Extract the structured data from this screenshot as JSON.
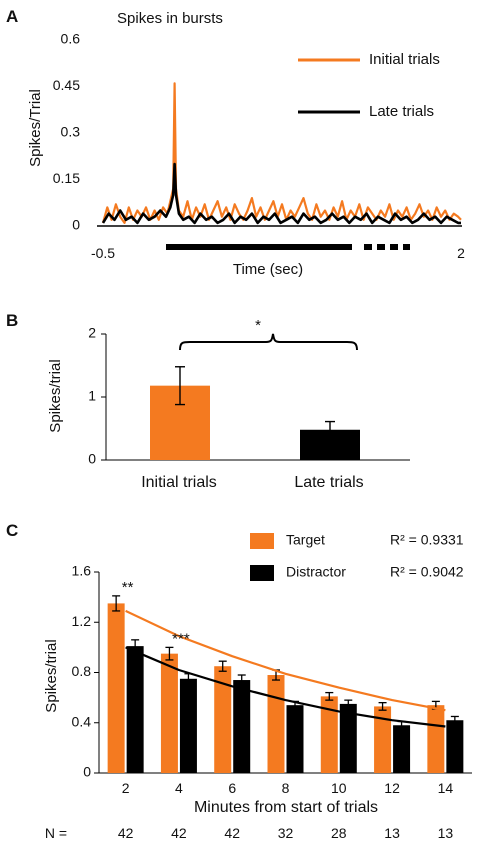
{
  "panels": {
    "A": {
      "letter": "A",
      "title": "Spikes in bursts",
      "ylabel": "Spikes/Trial",
      "xlabel": "Time (sec)",
      "yticks": [
        "0",
        "0.15",
        "0.3",
        "0.45",
        "0.6"
      ],
      "ytick_values": [
        0,
        0.15,
        0.3,
        0.45,
        0.6
      ],
      "xtick_start": "-0.5",
      "xtick_end": "2",
      "legend": [
        {
          "label": "Initial trials",
          "color": "#f47a20"
        },
        {
          "label": "Late trials",
          "color": "#000000"
        }
      ]
    },
    "B": {
      "letter": "B",
      "ylabel": "Spikes/trial",
      "yticks": [
        "0",
        "1",
        "2"
      ],
      "significance": "*"
    },
    "C": {
      "letter": "C",
      "ylabel": "Spikes/trial",
      "xlabel": "Minutes from start of trials",
      "yticks": [
        "0",
        "0.4",
        "0.8",
        "1.2",
        "1.6"
      ],
      "legend": [
        {
          "label": "Target",
          "r2": "R² = 0.9331",
          "color": "#f47a20"
        },
        {
          "label": "Distractor",
          "r2": "R² = 0.9042",
          "color": "#000000"
        }
      ],
      "stars": [
        {
          "category": "2",
          "text": "**"
        },
        {
          "category": "4",
          "text": "***"
        }
      ],
      "n_prefix": "N =",
      "n_values": [
        "42",
        "42",
        "42",
        "32",
        "28",
        "13",
        "13"
      ]
    }
  },
  "chart_data": [
    {
      "type": "line",
      "title": "Spikes in bursts",
      "xlabel": "Time (sec)",
      "ylabel": "Spikes/Trial",
      "xlim": [
        -0.5,
        2
      ],
      "ylim": [
        0,
        0.6
      ],
      "grid": false,
      "legend_position": "top-right",
      "series": [
        {
          "name": "Initial trials",
          "color": "#f47a20",
          "x": [
            -0.5,
            -0.47,
            -0.44,
            -0.41,
            -0.38,
            -0.35,
            -0.32,
            -0.29,
            -0.26,
            -0.23,
            -0.2,
            -0.17,
            -0.14,
            -0.11,
            -0.08,
            -0.05,
            -0.03,
            -0.01,
            0,
            0.01,
            0.03,
            0.06,
            0.09,
            0.12,
            0.15,
            0.18,
            0.21,
            0.24,
            0.27,
            0.3,
            0.33,
            0.36,
            0.39,
            0.42,
            0.45,
            0.48,
            0.51,
            0.54,
            0.57,
            0.6,
            0.63,
            0.66,
            0.69,
            0.72,
            0.75,
            0.78,
            0.81,
            0.84,
            0.87,
            0.9,
            0.93,
            0.96,
            0.99,
            1.02,
            1.05,
            1.08,
            1.11,
            1.14,
            1.17,
            1.2,
            1.23,
            1.26,
            1.29,
            1.32,
            1.35,
            1.38,
            1.41,
            1.44,
            1.47,
            1.5,
            1.53,
            1.56,
            1.59,
            1.62,
            1.65,
            1.68,
            1.71,
            1.74,
            1.77,
            1.8,
            1.83,
            1.86,
            1.89,
            1.92,
            1.95,
            1.98,
            2
          ],
          "y": [
            0.01,
            0.06,
            0.02,
            0.07,
            0.03,
            0.01,
            0.06,
            0.02,
            0.05,
            0.03,
            0.06,
            0.02,
            0.05,
            0.02,
            0.06,
            0.04,
            0.08,
            0.12,
            0.46,
            0.12,
            0.05,
            0.03,
            0.08,
            0.02,
            0.06,
            0.03,
            0.07,
            0.02,
            0.05,
            0.08,
            0.03,
            0.06,
            0.02,
            0.07,
            0.04,
            0.02,
            0.05,
            0.09,
            0.03,
            0.06,
            0.02,
            0.05,
            0.08,
            0.03,
            0.07,
            0.02,
            0.05,
            0.03,
            0.06,
            0.09,
            0.04,
            0.02,
            0.07,
            0.03,
            0.05,
            0.02,
            0.06,
            0.03,
            0.08,
            0.02,
            0.05,
            0.03,
            0.07,
            0.02,
            0.06,
            0.04,
            0.02,
            0.05,
            0.03,
            0.07,
            0.02,
            0.05,
            0.03,
            0.06,
            0.02,
            0.04,
            0.07,
            0.03,
            0.05,
            0.02,
            0.06,
            0.03,
            0.05,
            0.02,
            0.04,
            0.03,
            0.02
          ]
        },
        {
          "name": "Late trials",
          "color": "#000000",
          "x": [
            -0.5,
            -0.46,
            -0.42,
            -0.38,
            -0.34,
            -0.3,
            -0.26,
            -0.22,
            -0.18,
            -0.14,
            -0.1,
            -0.06,
            -0.03,
            -0.01,
            0,
            0.01,
            0.03,
            0.06,
            0.1,
            0.14,
            0.18,
            0.22,
            0.26,
            0.3,
            0.34,
            0.38,
            0.42,
            0.46,
            0.5,
            0.54,
            0.58,
            0.62,
            0.66,
            0.7,
            0.74,
            0.78,
            0.82,
            0.86,
            0.9,
            0.94,
            0.98,
            1.02,
            1.06,
            1.1,
            1.14,
            1.18,
            1.22,
            1.26,
            1.3,
            1.34,
            1.38,
            1.42,
            1.46,
            1.5,
            1.54,
            1.58,
            1.62,
            1.66,
            1.7,
            1.74,
            1.78,
            1.82,
            1.86,
            1.9,
            1.94,
            1.98,
            2
          ],
          "y": [
            0.01,
            0.04,
            0.02,
            0.05,
            0.02,
            0.03,
            0.01,
            0.04,
            0.02,
            0.03,
            0.05,
            0.03,
            0.06,
            0.1,
            0.2,
            0.1,
            0.04,
            0.02,
            0.03,
            0.01,
            0.04,
            0.02,
            0.03,
            0.01,
            0.02,
            0.04,
            0.01,
            0.03,
            0.02,
            0.04,
            0.01,
            0.03,
            0.02,
            0.04,
            0.01,
            0.02,
            0.03,
            0.01,
            0.04,
            0.02,
            0.03,
            0.01,
            0.02,
            0.04,
            0.02,
            0.03,
            0.01,
            0.03,
            0.02,
            0.04,
            0.01,
            0.03,
            0.02,
            0.01,
            0.04,
            0.02,
            0.03,
            0.01,
            0.02,
            0.04,
            0.02,
            0.03,
            0.01,
            0.03,
            0.02,
            0.01,
            0.01
          ]
        }
      ]
    },
    {
      "type": "bar",
      "xlabel": "",
      "ylabel": "Spikes/trial",
      "ylim": [
        0,
        2
      ],
      "grid": false,
      "categories": [
        "Initial trials",
        "Late trials"
      ],
      "values": [
        1.18,
        0.48
      ],
      "errors": [
        0.3,
        0.13
      ],
      "colors": [
        "#f47a20",
        "#000000"
      ]
    },
    {
      "type": "bar",
      "xlabel": "Minutes from start of trials",
      "ylabel": "Spikes/trial",
      "ylim": [
        0,
        1.6
      ],
      "grid": false,
      "legend_position": "top-right",
      "categories": [
        "2",
        "4",
        "6",
        "8",
        "10",
        "12",
        "14"
      ],
      "series": [
        {
          "name": "Target",
          "color": "#f47a20",
          "values": [
            1.35,
            0.95,
            0.85,
            0.78,
            0.61,
            0.53,
            0.54
          ],
          "errors": [
            0.06,
            0.05,
            0.04,
            0.04,
            0.03,
            0.03,
            0.03
          ],
          "fit_r2": 0.9331
        },
        {
          "name": "Distractor",
          "color": "#000000",
          "values": [
            1.01,
            0.75,
            0.74,
            0.54,
            0.55,
            0.38,
            0.42
          ],
          "errors": [
            0.05,
            0.04,
            0.04,
            0.03,
            0.03,
            0.03,
            0.03
          ],
          "fit_r2": 0.9042
        }
      ],
      "trend_lines": [
        {
          "series": "Target",
          "values": [
            1.29,
            1.09,
            0.93,
            0.79,
            0.68,
            0.58,
            0.5
          ]
        },
        {
          "series": "Distractor",
          "values": [
            1.0,
            0.82,
            0.69,
            0.58,
            0.49,
            0.42,
            0.37
          ]
        }
      ]
    }
  ]
}
